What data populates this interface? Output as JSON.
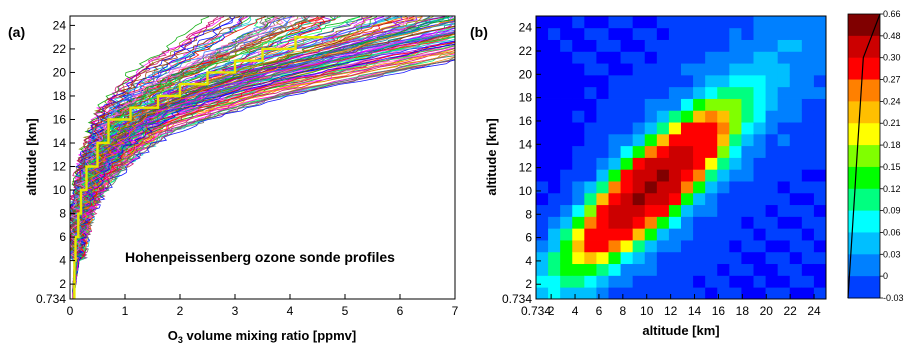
{
  "chart_data": [
    {
      "panel_label": "(a)",
      "type": "line",
      "annotation": "Hohenpeissenberg ozone sonde profiles",
      "xlabel_prefix": "O",
      "xlabel_sub": "3",
      "xlabel_rest": " volume mixing ratio [ppmv]",
      "ylabel": "altitude [km]",
      "xlim": [
        0,
        7
      ],
      "ylim": [
        0.734,
        24.8
      ],
      "xticks": [
        "0",
        "1",
        "2",
        "3",
        "4",
        "5",
        "6",
        "7"
      ],
      "yticks": [
        "0.734",
        "2",
        "4",
        "6",
        "8",
        "10",
        "12",
        "14",
        "16",
        "18",
        "20",
        "22",
        "24"
      ],
      "grid": false,
      "series": [
        {
          "style": "many sonde profiles (multicolor)",
          "x": [
            0.05,
            0.1,
            0.2,
            0.3,
            0.5,
            0.8,
            1.2,
            1.8,
            2.5,
            3.5,
            4.5,
            5.5,
            6.3
          ],
          "y": [
            0.734,
            4,
            8,
            10,
            12,
            14,
            16,
            17.5,
            19,
            20.5,
            22,
            23.5,
            24.8
          ]
        },
        {
          "style": "mean profile (yellow, stepped)",
          "color": "#e8e800",
          "x": [
            0.08,
            0.1,
            0.15,
            0.2,
            0.3,
            0.5,
            0.7,
            1.1,
            1.6,
            2.0,
            2.5,
            3.0,
            3.5,
            4.1,
            4.6
          ],
          "y": [
            0.734,
            4,
            6,
            8,
            10,
            12,
            14,
            16,
            17,
            18,
            19,
            20,
            21,
            22,
            23
          ]
        }
      ]
    },
    {
      "panel_label": "(b)",
      "type": "heatmap",
      "xlabel": "altitude [km]",
      "ylabel": "altitude [km]",
      "xlim": [
        0.734,
        25
      ],
      "ylim": [
        0.734,
        25
      ],
      "xticks": [
        "0.734",
        "2",
        "4",
        "6",
        "8",
        "10",
        "12",
        "14",
        "16",
        "18",
        "20",
        "22",
        "24"
      ],
      "yticks": [
        "0.734",
        "2",
        "4",
        "6",
        "8",
        "10",
        "12",
        "14",
        "16",
        "18",
        "20",
        "22",
        "24"
      ],
      "peak_center": [
        10.5,
        10.5
      ],
      "peak_value": 0.66,
      "colorbar": {
        "ticks": [
          "0.66",
          "0.48",
          "0.30",
          "0.27",
          "0.24",
          "0.21",
          "0.18",
          "0.15",
          "0.12",
          "0.09",
          "0.06",
          "0.03",
          "0",
          "-0.03"
        ],
        "values": [
          0.66,
          0.48,
          0.3,
          0.27,
          0.24,
          0.21,
          0.18,
          0.15,
          0.12,
          0.09,
          0.06,
          0.03,
          0,
          -0.03
        ],
        "colors": [
          "#0000ff",
          "#0040ff",
          "#0080ff",
          "#00bfff",
          "#00ffff",
          "#00ff80",
          "#00ff00",
          "#80ff00",
          "#ffff00",
          "#ffbf00",
          "#ff8000",
          "#ff0000",
          "#cc0000",
          "#800000"
        ]
      }
    }
  ]
}
